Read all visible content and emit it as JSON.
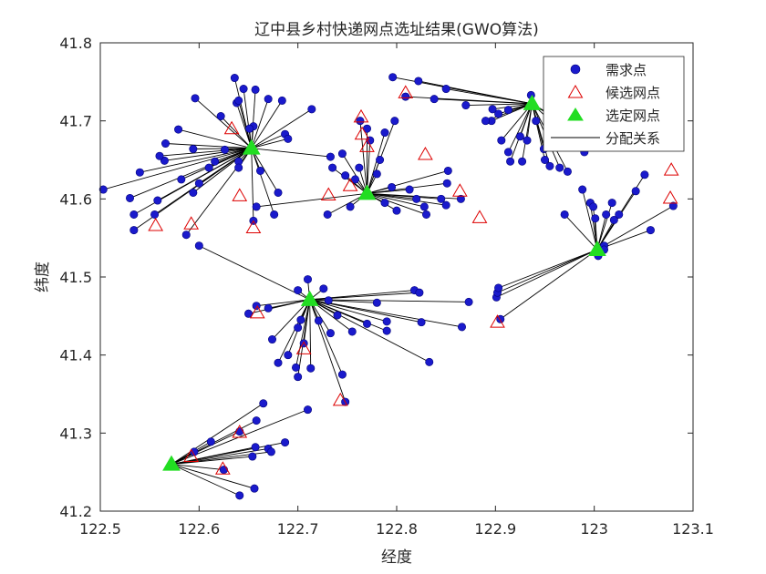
{
  "chart_data": {
    "type": "scatter",
    "title": "辽中县乡村快递网点选址结果(GWO算法)",
    "xlabel": "经度",
    "ylabel": "纬度",
    "xlim": [
      122.5,
      123.1
    ],
    "ylim": [
      41.2,
      41.8
    ],
    "xticks": [
      {
        "value": 122.5,
        "label": "122.5"
      },
      {
        "value": 122.6,
        "label": "122.6"
      },
      {
        "value": 122.7,
        "label": "122.7"
      },
      {
        "value": 122.8,
        "label": "122.8"
      },
      {
        "value": 122.9,
        "label": "122.9"
      },
      {
        "value": 123.0,
        "label": "123"
      },
      {
        "value": 123.1,
        "label": "123.1"
      }
    ],
    "yticks": [
      {
        "value": 41.2,
        "label": "41.2"
      },
      {
        "value": 41.3,
        "label": "41.3"
      },
      {
        "value": 41.4,
        "label": "41.4"
      },
      {
        "value": 41.5,
        "label": "41.5"
      },
      {
        "value": 41.6,
        "label": "41.6"
      },
      {
        "value": 41.7,
        "label": "41.7"
      },
      {
        "value": 41.8,
        "label": "41.8"
      }
    ],
    "legend": {
      "position": "top-right",
      "entries": [
        {
          "label": "需求点",
          "marker": "circle",
          "color": "#0000cc"
        },
        {
          "label": "候选网点",
          "marker": "triangle-open",
          "color": "#dd0000"
        },
        {
          "label": "选定网点",
          "marker": "triangle-filled",
          "color": "#00dd00"
        },
        {
          "label": "分配关系",
          "marker": "line",
          "color": "#000000"
        }
      ]
    },
    "colors": {
      "demand": "#1a1acc",
      "demand_edge": "#00007a",
      "candidate": "#dd0000",
      "selected": "#22dd22",
      "assignment": "#000000"
    },
    "selected_sites": [
      {
        "id": 0,
        "x": 122.653,
        "y": 41.665
      },
      {
        "id": 1,
        "x": 122.77,
        "y": 41.607
      },
      {
        "id": 2,
        "x": 122.937,
        "y": 41.722
      },
      {
        "id": 3,
        "x": 123.003,
        "y": 41.535
      },
      {
        "id": 4,
        "x": 122.712,
        "y": 41.471
      },
      {
        "id": 5,
        "x": 122.572,
        "y": 41.26
      }
    ],
    "candidate_sites": [
      {
        "x": 122.633,
        "y": 41.69
      },
      {
        "x": 122.641,
        "y": 41.604
      },
      {
        "x": 122.655,
        "y": 41.563
      },
      {
        "x": 122.592,
        "y": 41.568
      },
      {
        "x": 122.556,
        "y": 41.566
      },
      {
        "x": 122.764,
        "y": 41.705
      },
      {
        "x": 122.765,
        "y": 41.683
      },
      {
        "x": 122.77,
        "y": 41.667
      },
      {
        "x": 122.731,
        "y": 41.605
      },
      {
        "x": 122.753,
        "y": 41.617
      },
      {
        "x": 122.809,
        "y": 41.736
      },
      {
        "x": 122.829,
        "y": 41.657
      },
      {
        "x": 122.864,
        "y": 41.61
      },
      {
        "x": 122.884,
        "y": 41.576
      },
      {
        "x": 123.078,
        "y": 41.637
      },
      {
        "x": 123.077,
        "y": 41.601
      },
      {
        "x": 122.659,
        "y": 41.454
      },
      {
        "x": 122.706,
        "y": 41.408
      },
      {
        "x": 122.743,
        "y": 41.342
      },
      {
        "x": 122.902,
        "y": 41.442
      },
      {
        "x": 122.641,
        "y": 41.301
      },
      {
        "x": 122.624,
        "y": 41.254
      },
      {
        "x": 122.592,
        "y": 41.27
      }
    ],
    "demand_points": [
      {
        "x": 122.503,
        "y": 41.612,
        "s": 0
      },
      {
        "x": 122.54,
        "y": 41.634,
        "s": 0
      },
      {
        "x": 122.53,
        "y": 41.601,
        "s": 0
      },
      {
        "x": 122.534,
        "y": 41.58,
        "s": 0
      },
      {
        "x": 122.534,
        "y": 41.56,
        "s": 0
      },
      {
        "x": 122.555,
        "y": 41.58,
        "s": 0
      },
      {
        "x": 122.558,
        "y": 41.598,
        "s": 0
      },
      {
        "x": 122.565,
        "y": 41.649,
        "s": 0
      },
      {
        "x": 122.566,
        "y": 41.671,
        "s": 0
      },
      {
        "x": 122.579,
        "y": 41.689,
        "s": 0
      },
      {
        "x": 122.582,
        "y": 41.625,
        "s": 0
      },
      {
        "x": 122.594,
        "y": 41.664,
        "s": 0
      },
      {
        "x": 122.596,
        "y": 41.729,
        "s": 0
      },
      {
        "x": 122.594,
        "y": 41.608,
        "s": 0
      },
      {
        "x": 122.587,
        "y": 41.554,
        "s": 0
      },
      {
        "x": 122.622,
        "y": 41.706,
        "s": 0
      },
      {
        "x": 122.636,
        "y": 41.755,
        "s": 0
      },
      {
        "x": 122.638,
        "y": 41.723,
        "s": 0
      },
      {
        "x": 122.645,
        "y": 41.741,
        "s": 0
      },
      {
        "x": 122.64,
        "y": 41.726,
        "s": 0
      },
      {
        "x": 122.657,
        "y": 41.74,
        "s": 0
      },
      {
        "x": 122.67,
        "y": 41.728,
        "s": 0
      },
      {
        "x": 122.684,
        "y": 41.726,
        "s": 0
      },
      {
        "x": 122.714,
        "y": 41.715,
        "s": 0
      },
      {
        "x": 122.687,
        "y": 41.683,
        "s": 0
      },
      {
        "x": 122.69,
        "y": 41.677,
        "s": 0
      },
      {
        "x": 122.662,
        "y": 41.636,
        "s": 0
      },
      {
        "x": 122.68,
        "y": 41.608,
        "s": 0
      },
      {
        "x": 122.676,
        "y": 41.58,
        "s": 0
      },
      {
        "x": 122.655,
        "y": 41.572,
        "s": 0
      },
      {
        "x": 122.64,
        "y": 41.648,
        "s": 0
      },
      {
        "x": 122.616,
        "y": 41.648,
        "s": 0
      },
      {
        "x": 122.655,
        "y": 41.693,
        "s": 0
      },
      {
        "x": 122.626,
        "y": 41.663,
        "s": 0
      },
      {
        "x": 122.61,
        "y": 41.64,
        "s": 0
      },
      {
        "x": 122.56,
        "y": 41.655,
        "s": 0
      },
      {
        "x": 122.733,
        "y": 41.654,
        "s": 0
      },
      {
        "x": 122.64,
        "y": 41.64,
        "s": 0
      },
      {
        "x": 122.651,
        "y": 41.69,
        "s": 0
      },
      {
        "x": 122.6,
        "y": 41.62,
        "s": 0
      },
      {
        "x": 122.735,
        "y": 41.64,
        "s": 1
      },
      {
        "x": 122.745,
        "y": 41.658,
        "s": 1
      },
      {
        "x": 122.748,
        "y": 41.63,
        "s": 1
      },
      {
        "x": 122.758,
        "y": 41.625,
        "s": 1
      },
      {
        "x": 122.762,
        "y": 41.64,
        "s": 1
      },
      {
        "x": 122.77,
        "y": 41.69,
        "s": 1
      },
      {
        "x": 122.763,
        "y": 41.7,
        "s": 1
      },
      {
        "x": 122.773,
        "y": 41.675,
        "s": 1
      },
      {
        "x": 122.783,
        "y": 41.65,
        "s": 1
      },
      {
        "x": 122.788,
        "y": 41.685,
        "s": 1
      },
      {
        "x": 122.798,
        "y": 41.7,
        "s": 1
      },
      {
        "x": 122.78,
        "y": 41.632,
        "s": 1
      },
      {
        "x": 122.795,
        "y": 41.615,
        "s": 1
      },
      {
        "x": 122.813,
        "y": 41.612,
        "s": 1
      },
      {
        "x": 122.82,
        "y": 41.6,
        "s": 1
      },
      {
        "x": 122.828,
        "y": 41.59,
        "s": 1
      },
      {
        "x": 122.845,
        "y": 41.6,
        "s": 1
      },
      {
        "x": 122.851,
        "y": 41.62,
        "s": 1
      },
      {
        "x": 122.852,
        "y": 41.636,
        "s": 1
      },
      {
        "x": 122.865,
        "y": 41.6,
        "s": 1
      },
      {
        "x": 122.8,
        "y": 41.585,
        "s": 1
      },
      {
        "x": 122.788,
        "y": 41.595,
        "s": 1
      },
      {
        "x": 122.753,
        "y": 41.59,
        "s": 1
      },
      {
        "x": 122.73,
        "y": 41.58,
        "s": 1
      },
      {
        "x": 122.83,
        "y": 41.58,
        "s": 1
      },
      {
        "x": 122.85,
        "y": 41.592,
        "s": 1
      },
      {
        "x": 122.658,
        "y": 41.59,
        "s": 1
      },
      {
        "x": 122.796,
        "y": 41.756,
        "s": 2
      },
      {
        "x": 122.822,
        "y": 41.751,
        "s": 2
      },
      {
        "x": 122.838,
        "y": 41.728,
        "s": 2
      },
      {
        "x": 122.809,
        "y": 41.731,
        "s": 2
      },
      {
        "x": 122.85,
        "y": 41.741,
        "s": 2
      },
      {
        "x": 122.87,
        "y": 41.72,
        "s": 2
      },
      {
        "x": 122.897,
        "y": 41.715,
        "s": 2
      },
      {
        "x": 122.903,
        "y": 41.709,
        "s": 2
      },
      {
        "x": 122.913,
        "y": 41.714,
        "s": 2
      },
      {
        "x": 122.896,
        "y": 41.7,
        "s": 2
      },
      {
        "x": 122.906,
        "y": 41.675,
        "s": 2
      },
      {
        "x": 122.913,
        "y": 41.66,
        "s": 2
      },
      {
        "x": 122.925,
        "y": 41.68,
        "s": 2
      },
      {
        "x": 122.932,
        "y": 41.675,
        "s": 2
      },
      {
        "x": 122.936,
        "y": 41.733,
        "s": 2
      },
      {
        "x": 122.941,
        "y": 41.7,
        "s": 2
      },
      {
        "x": 122.949,
        "y": 41.664,
        "s": 2
      },
      {
        "x": 122.958,
        "y": 41.705,
        "s": 2
      },
      {
        "x": 122.965,
        "y": 41.64,
        "s": 2
      },
      {
        "x": 122.973,
        "y": 41.635,
        "s": 2
      },
      {
        "x": 122.99,
        "y": 41.66,
        "s": 2
      },
      {
        "x": 122.955,
        "y": 41.642,
        "s": 2
      },
      {
        "x": 122.95,
        "y": 41.65,
        "s": 2
      },
      {
        "x": 122.927,
        "y": 41.648,
        "s": 2
      },
      {
        "x": 122.89,
        "y": 41.7,
        "s": 2
      },
      {
        "x": 122.915,
        "y": 41.648,
        "s": 2
      },
      {
        "x": 122.98,
        "y": 41.69,
        "s": 2
      },
      {
        "x": 122.988,
        "y": 41.612,
        "s": 3
      },
      {
        "x": 122.996,
        "y": 41.595,
        "s": 3
      },
      {
        "x": 122.999,
        "y": 41.59,
        "s": 3
      },
      {
        "x": 122.97,
        "y": 41.58,
        "s": 3
      },
      {
        "x": 123.001,
        "y": 41.575,
        "s": 3
      },
      {
        "x": 123.004,
        "y": 41.527,
        "s": 3
      },
      {
        "x": 123.012,
        "y": 41.58,
        "s": 3
      },
      {
        "x": 123.02,
        "y": 41.573,
        "s": 3
      },
      {
        "x": 123.025,
        "y": 41.58,
        "s": 3
      },
      {
        "x": 123.042,
        "y": 41.61,
        "s": 3
      },
      {
        "x": 123.051,
        "y": 41.631,
        "s": 3
      },
      {
        "x": 123.057,
        "y": 41.56,
        "s": 3
      },
      {
        "x": 123.08,
        "y": 41.591,
        "s": 3
      },
      {
        "x": 123.01,
        "y": 41.54,
        "s": 3
      },
      {
        "x": 122.901,
        "y": 41.474,
        "s": 3
      },
      {
        "x": 122.902,
        "y": 41.48,
        "s": 3
      },
      {
        "x": 122.903,
        "y": 41.486,
        "s": 3
      },
      {
        "x": 122.905,
        "y": 41.446,
        "s": 3
      },
      {
        "x": 123.018,
        "y": 41.595,
        "s": 3
      },
      {
        "x": 123.01,
        "y": 41.535,
        "s": 3
      },
      {
        "x": 122.71,
        "y": 41.497,
        "s": 4
      },
      {
        "x": 122.7,
        "y": 41.483,
        "s": 4
      },
      {
        "x": 122.67,
        "y": 41.46,
        "s": 4
      },
      {
        "x": 122.658,
        "y": 41.463,
        "s": 4
      },
      {
        "x": 122.65,
        "y": 41.453,
        "s": 4
      },
      {
        "x": 122.674,
        "y": 41.42,
        "s": 4
      },
      {
        "x": 122.68,
        "y": 41.39,
        "s": 4
      },
      {
        "x": 122.69,
        "y": 41.4,
        "s": 4
      },
      {
        "x": 122.698,
        "y": 41.384,
        "s": 4
      },
      {
        "x": 122.7,
        "y": 41.435,
        "s": 4
      },
      {
        "x": 122.703,
        "y": 41.445,
        "s": 4
      },
      {
        "x": 122.7,
        "y": 41.372,
        "s": 4
      },
      {
        "x": 122.706,
        "y": 41.415,
        "s": 4
      },
      {
        "x": 122.713,
        "y": 41.383,
        "s": 4
      },
      {
        "x": 122.721,
        "y": 41.444,
        "s": 4
      },
      {
        "x": 122.726,
        "y": 41.485,
        "s": 4
      },
      {
        "x": 122.731,
        "y": 41.47,
        "s": 4
      },
      {
        "x": 122.733,
        "y": 41.428,
        "s": 4
      },
      {
        "x": 122.74,
        "y": 41.451,
        "s": 4
      },
      {
        "x": 122.745,
        "y": 41.375,
        "s": 4
      },
      {
        "x": 122.755,
        "y": 41.43,
        "s": 4
      },
      {
        "x": 122.77,
        "y": 41.44,
        "s": 4
      },
      {
        "x": 122.78,
        "y": 41.467,
        "s": 4
      },
      {
        "x": 122.79,
        "y": 41.431,
        "s": 4
      },
      {
        "x": 122.79,
        "y": 41.443,
        "s": 4
      },
      {
        "x": 122.818,
        "y": 41.483,
        "s": 4
      },
      {
        "x": 122.823,
        "y": 41.48,
        "s": 4
      },
      {
        "x": 122.825,
        "y": 41.442,
        "s": 4
      },
      {
        "x": 122.833,
        "y": 41.391,
        "s": 4
      },
      {
        "x": 122.866,
        "y": 41.436,
        "s": 4
      },
      {
        "x": 122.873,
        "y": 41.468,
        "s": 4
      },
      {
        "x": 122.6,
        "y": 41.54,
        "s": 4
      },
      {
        "x": 122.748,
        "y": 41.34,
        "s": 4
      },
      {
        "x": 122.595,
        "y": 41.276,
        "s": 5
      },
      {
        "x": 122.612,
        "y": 41.289,
        "s": 5
      },
      {
        "x": 122.625,
        "y": 41.253,
        "s": 5
      },
      {
        "x": 122.641,
        "y": 41.22,
        "s": 5
      },
      {
        "x": 122.641,
        "y": 41.302,
        "s": 5
      },
      {
        "x": 122.658,
        "y": 41.316,
        "s": 5
      },
      {
        "x": 122.654,
        "y": 41.27,
        "s": 5
      },
      {
        "x": 122.656,
        "y": 41.229,
        "s": 5
      },
      {
        "x": 122.657,
        "y": 41.282,
        "s": 5
      },
      {
        "x": 122.665,
        "y": 41.338,
        "s": 5
      },
      {
        "x": 122.67,
        "y": 41.28,
        "s": 5
      },
      {
        "x": 122.673,
        "y": 41.276,
        "s": 5
      },
      {
        "x": 122.687,
        "y": 41.288,
        "s": 5
      },
      {
        "x": 122.71,
        "y": 41.33,
        "s": 5
      }
    ]
  }
}
